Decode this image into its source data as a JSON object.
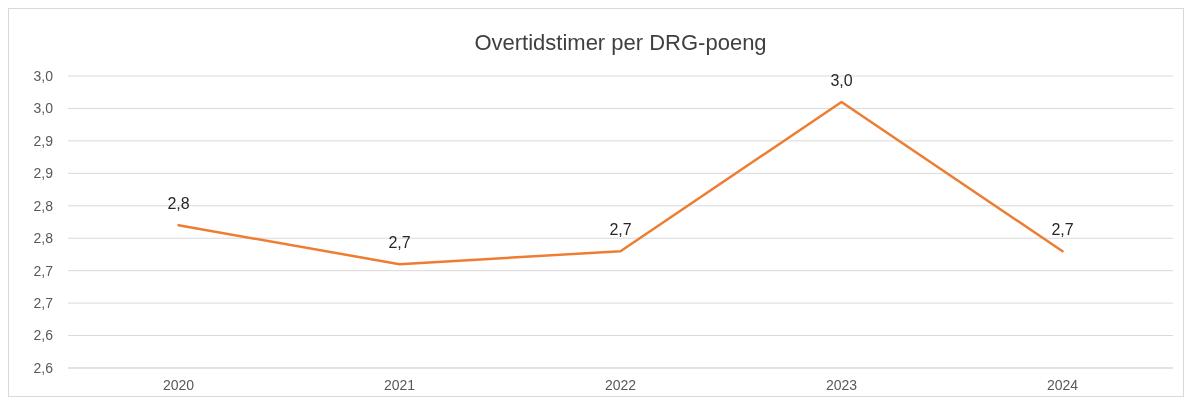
{
  "chart_data": {
    "type": "line",
    "title": "Overtidstimer per DRG-poeng",
    "categories": [
      "2020",
      "2021",
      "2022",
      "2023",
      "2024"
    ],
    "series": [
      {
        "color": "#ed7d31",
        "values": [
          2.77,
          2.71,
          2.73,
          2.96,
          2.73
        ],
        "value_labels": [
          "2,8",
          "2,7",
          "2,7",
          "3,0",
          "2,7"
        ]
      }
    ],
    "ylim": [
      2.55,
      3.0
    ],
    "yticks": [
      {
        "value": 2.55,
        "label": "2,6"
      },
      {
        "value": 2.6,
        "label": "2,6"
      },
      {
        "value": 2.65,
        "label": "2,7"
      },
      {
        "value": 2.7,
        "label": "2,7"
      },
      {
        "value": 2.75,
        "label": "2,8"
      },
      {
        "value": 2.8,
        "label": "2,8"
      },
      {
        "value": 2.85,
        "label": "2,9"
      },
      {
        "value": 2.9,
        "label": "2,9"
      },
      {
        "value": 2.95,
        "label": "3,0"
      },
      {
        "value": 3.0,
        "label": "3,0"
      }
    ],
    "grid": "y",
    "marker": "none",
    "line_style": "solid"
  }
}
